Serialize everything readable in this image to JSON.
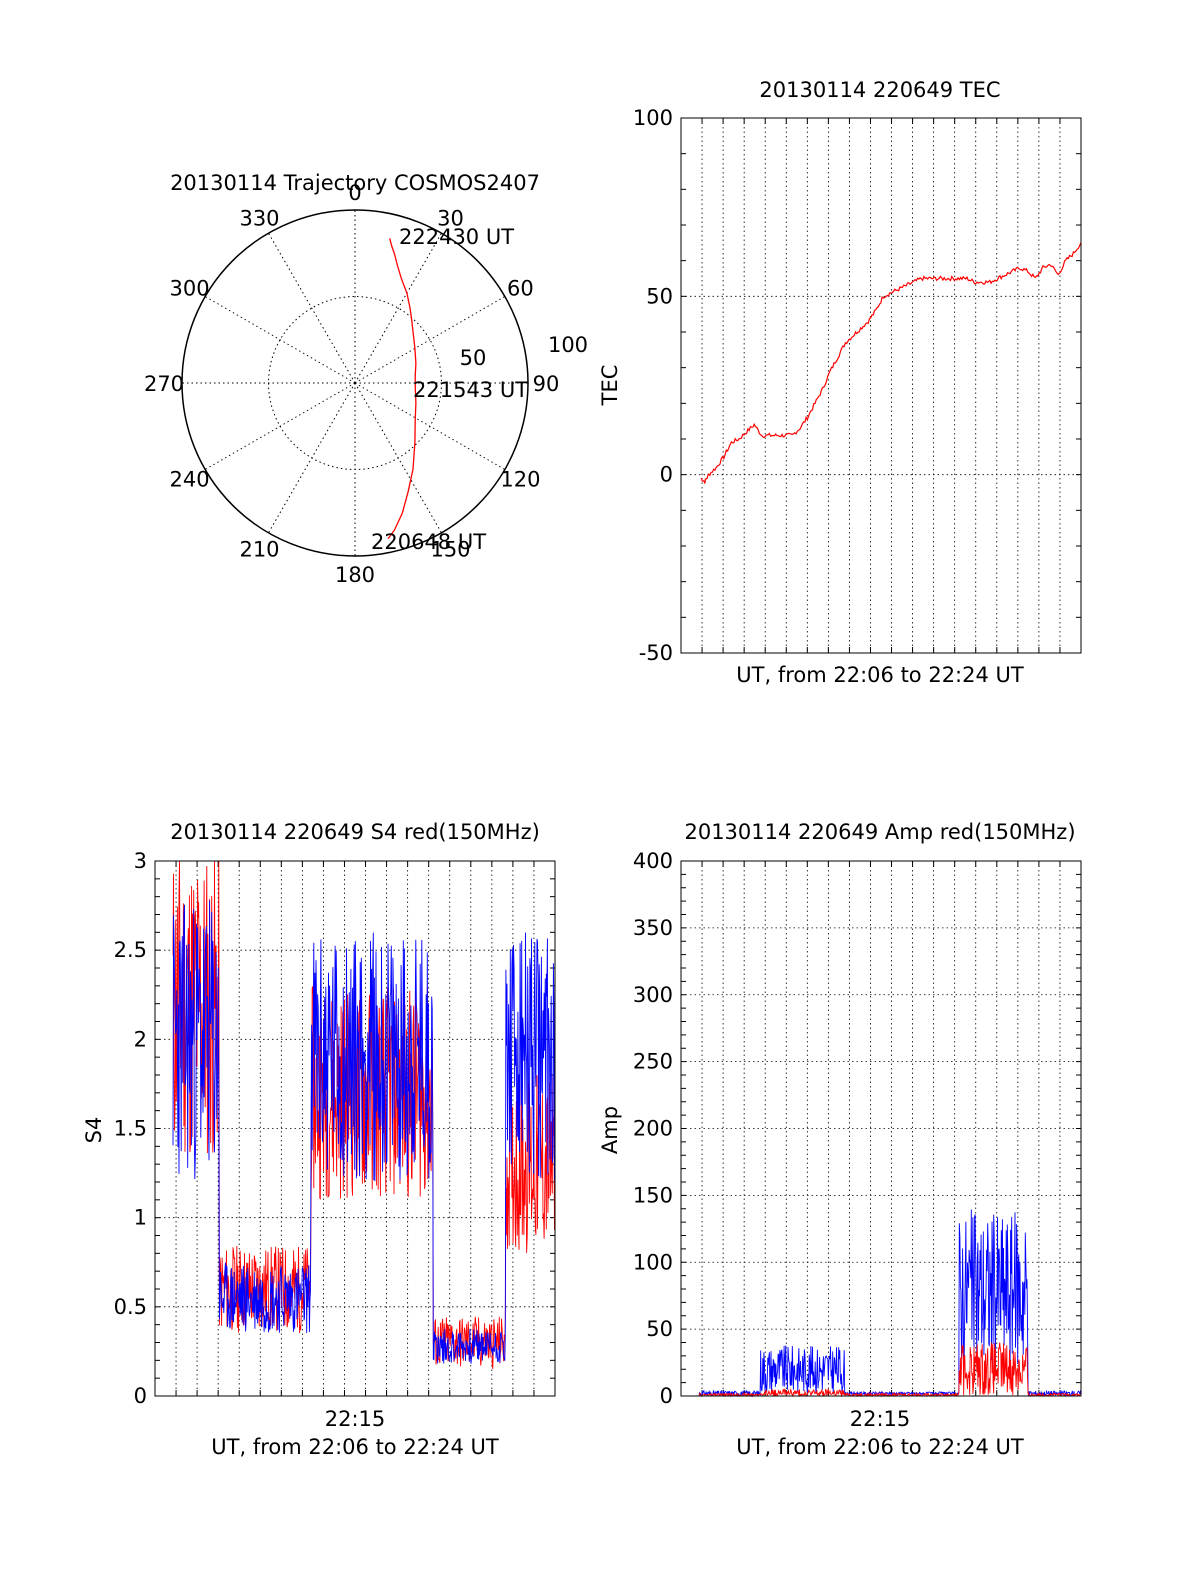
{
  "chart_data": [
    {
      "id": "trajectory",
      "type": "scatter",
      "projection": "polar",
      "title": "20130114 Trajectory COSMOS2407",
      "azimuth_labels": [
        "0",
        "30",
        "60",
        "90",
        "120",
        "150",
        "180",
        "210",
        "240",
        "270",
        "300",
        "330"
      ],
      "radius_labels": [
        "50",
        "100"
      ],
      "elevation_range": [
        0,
        100
      ],
      "grid": "dotted",
      "series": [
        {
          "color": "#ff0000",
          "points_az_r": [
            [
              13.5,
              86
            ],
            [
              15,
              82
            ],
            [
              17,
              78
            ],
            [
              20,
              72
            ],
            [
              24,
              66
            ],
            [
              30,
              60
            ],
            [
              36,
              54
            ],
            [
              42,
              49
            ],
            [
              50,
              44
            ],
            [
              60,
              40
            ],
            [
              72,
              37
            ],
            [
              84,
              35
            ],
            [
              95,
              35
            ],
            [
              108,
              37
            ],
            [
              122,
              41
            ],
            [
              135,
              49
            ],
            [
              146,
              60
            ],
            [
              154,
              70
            ],
            [
              160,
              80
            ],
            [
              165,
              88
            ],
            [
              168,
              92
            ]
          ]
        }
      ],
      "annotations": [
        "222430 UT",
        "221543 UT",
        "220648 UT"
      ]
    },
    {
      "id": "tec",
      "type": "line",
      "title": "20130114 220649 TEC",
      "xlabel": "UT, from 22:06 to 22:24 UT",
      "ylabel": "TEC",
      "xlim": [
        0,
        1
      ],
      "ylim": [
        -50,
        100
      ],
      "yticks": [
        "-50",
        "0",
        "50",
        "100"
      ],
      "grid": "dotted",
      "series": [
        {
          "color": "#ff0000",
          "x": [
            0,
            0.01,
            0.02,
            0.04,
            0.06,
            0.08,
            0.1,
            0.12,
            0.14,
            0.16,
            0.18,
            0.2,
            0.22,
            0.24,
            0.26,
            0.28,
            0.3,
            0.32,
            0.34,
            0.36,
            0.38,
            0.4,
            0.42,
            0.44,
            0.46,
            0.48,
            0.5,
            0.52,
            0.54,
            0.56,
            0.58,
            0.6,
            0.62,
            0.64,
            0.66,
            0.68,
            0.7,
            0.72,
            0.74,
            0.76,
            0.78,
            0.8,
            0.82,
            0.84,
            0.86,
            0.88,
            0.9,
            0.92,
            0.94,
            0.96,
            0.98,
            1.0
          ],
          "y": [
            -1,
            -2,
            0,
            2,
            5,
            9,
            10,
            12,
            14,
            11,
            11,
            11,
            11,
            11,
            13,
            16,
            20,
            24,
            29,
            33,
            37,
            39,
            41,
            43,
            46,
            50,
            51,
            52,
            53,
            54,
            55,
            55,
            55,
            55,
            55,
            55,
            55,
            54,
            54,
            54,
            55,
            56,
            57,
            58,
            57,
            55,
            58,
            59,
            56,
            60,
            62,
            65
          ]
        }
      ]
    },
    {
      "id": "s4",
      "type": "line",
      "title": "20130114 220649 S4 red(150MHz)",
      "xlabel": "UT, from 22:06 to 22:24 UT",
      "ylabel": "S4",
      "xlim": [
        0,
        1
      ],
      "ylim": [
        0,
        3
      ],
      "yticks": [
        "0",
        "0.5",
        "1",
        "1.5",
        "2",
        "2.5",
        "3"
      ],
      "xtick": "22:15",
      "grid": "dotted",
      "segments": [
        {
          "x0": 0.0,
          "x1": 0.12,
          "red_mean": 2.2,
          "red_spread": 0.9,
          "blue_mean": 2.0,
          "blue_spread": 0.8
        },
        {
          "x0": 0.12,
          "x1": 0.36,
          "red_mean": 0.6,
          "red_spread": 0.25,
          "blue_mean": 0.55,
          "blue_spread": 0.2
        },
        {
          "x0": 0.36,
          "x1": 0.68,
          "red_mean": 1.7,
          "red_spread": 0.6,
          "blue_mean": 1.9,
          "blue_spread": 0.7
        },
        {
          "x0": 0.68,
          "x1": 0.87,
          "red_mean": 0.3,
          "red_spread": 0.15,
          "blue_mean": 0.28,
          "blue_spread": 0.1
        },
        {
          "x0": 0.87,
          "x1": 1.0,
          "red_mean": 1.3,
          "red_spread": 0.5,
          "blue_mean": 1.9,
          "blue_spread": 0.7
        }
      ],
      "series": [
        {
          "color": "#ff0000"
        },
        {
          "color": "#0000ff"
        }
      ]
    },
    {
      "id": "amp",
      "type": "line",
      "title": "20130114 220649 Amp red(150MHz)",
      "xlabel": "UT, from 22:06 to 22:24 UT",
      "ylabel": "Amp",
      "xlim": [
        0,
        1
      ],
      "ylim": [
        0,
        400
      ],
      "yticks": [
        "0",
        "50",
        "100",
        "150",
        "200",
        "250",
        "300",
        "350",
        "400"
      ],
      "xtick": "22:15",
      "grid": "dotted",
      "segments": [
        {
          "x0": 0.0,
          "x1": 0.16,
          "red_mean": 1,
          "red_spread": 1,
          "blue_mean": 2,
          "blue_spread": 2
        },
        {
          "x0": 0.16,
          "x1": 0.38,
          "red_mean": 2,
          "red_spread": 3,
          "blue_mean": 20,
          "blue_spread": 18
        },
        {
          "x0": 0.38,
          "x1": 0.68,
          "red_mean": 1,
          "red_spread": 1,
          "blue_mean": 2,
          "blue_spread": 1
        },
        {
          "x0": 0.68,
          "x1": 0.86,
          "red_mean": 20,
          "red_spread": 20,
          "blue_mean": 80,
          "blue_spread": 60
        },
        {
          "x0": 0.86,
          "x1": 1.0,
          "red_mean": 1,
          "red_spread": 1,
          "blue_mean": 2,
          "blue_spread": 2
        }
      ],
      "series": [
        {
          "color": "#0000ff"
        },
        {
          "color": "#ff0000"
        }
      ]
    }
  ]
}
